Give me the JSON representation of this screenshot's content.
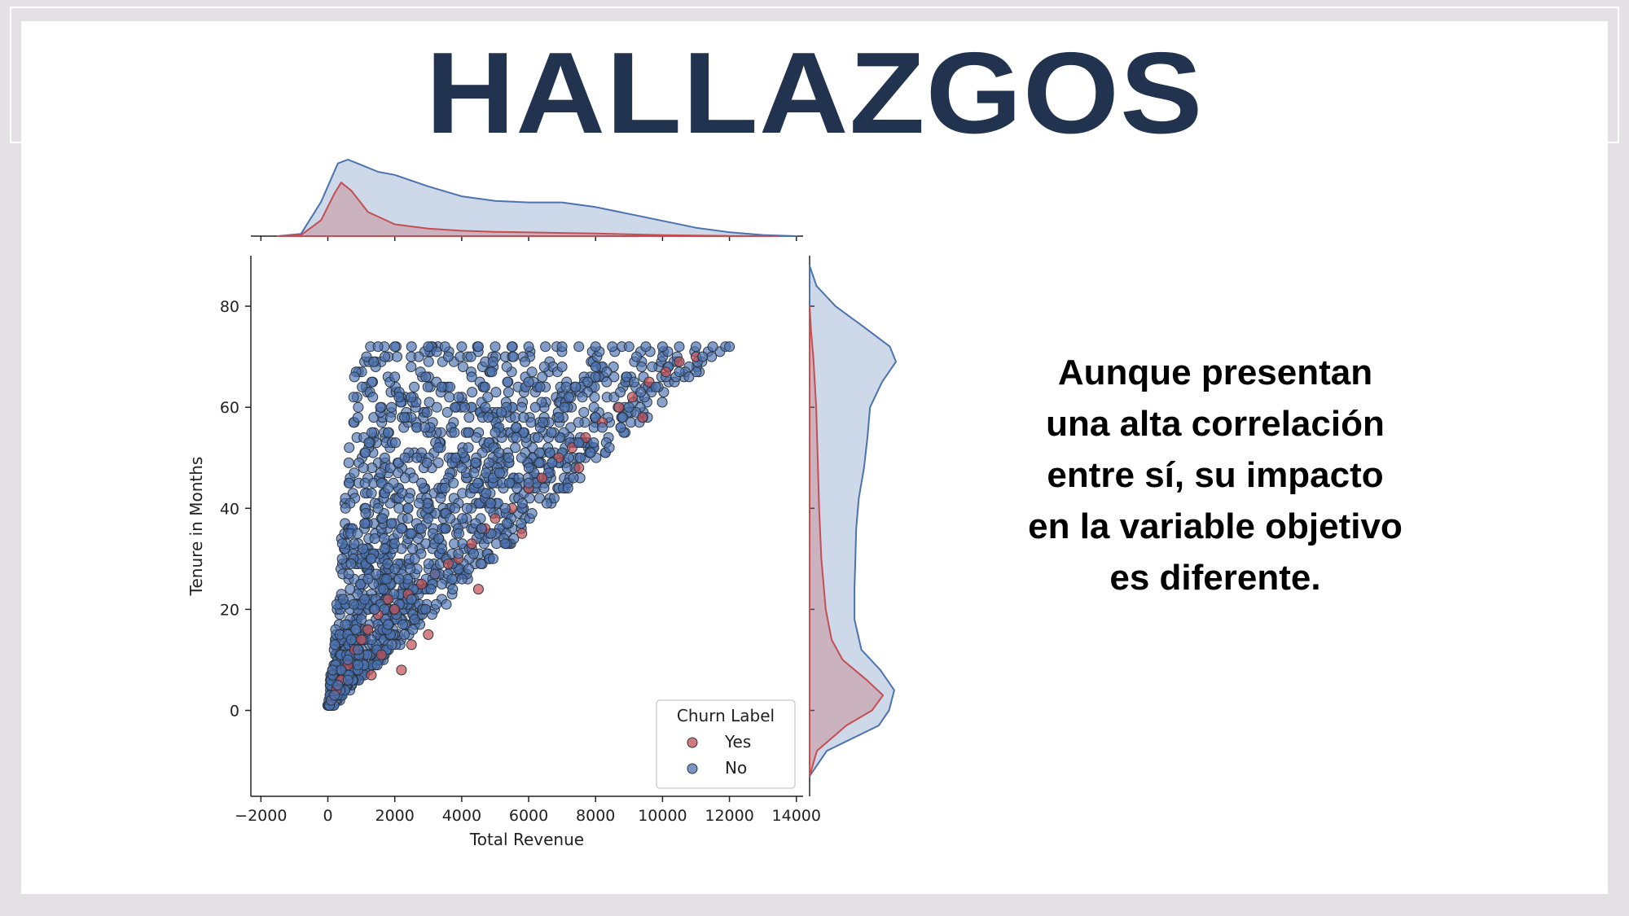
{
  "slide": {
    "title": "HALLAZGOS",
    "finding_lines": [
      "Aunque presentan",
      "una alta correlación",
      "entre sí, su impacto",
      "en la variable objetivo",
      "es diferente."
    ]
  },
  "chart_data": {
    "type": "scatter",
    "subtype": "jointplot with marginal KDE",
    "xlabel": "Total Revenue",
    "ylabel": "Tenure in Months",
    "xlim": [
      -2300,
      14200
    ],
    "ylim": [
      -17,
      90
    ],
    "xticks": [
      -2000,
      0,
      2000,
      4000,
      6000,
      8000,
      10000,
      12000,
      14000
    ],
    "xtick_labels": [
      "−2000",
      "0",
      "2000",
      "4000",
      "6000",
      "8000",
      "10000",
      "12000",
      "14000"
    ],
    "yticks": [
      0,
      20,
      40,
      60,
      80
    ],
    "ytick_labels": [
      "0",
      "20",
      "40",
      "60",
      "80"
    ],
    "legend": {
      "title": "Churn Label",
      "placement": "lower-right",
      "entries": [
        "Yes",
        "No"
      ]
    },
    "colors": {
      "Yes": "#c44e52",
      "No": "#4c72b0",
      "edge": "#2a3440"
    },
    "series": [
      {
        "name": "Yes",
        "points": [
          [
            100,
            2
          ],
          [
            250,
            4
          ],
          [
            400,
            6
          ],
          [
            600,
            9
          ],
          [
            800,
            12
          ],
          [
            1000,
            14
          ],
          [
            1200,
            16
          ],
          [
            1500,
            19
          ],
          [
            1800,
            22
          ],
          [
            2000,
            20
          ],
          [
            2400,
            23
          ],
          [
            2800,
            25
          ],
          [
            3200,
            27
          ],
          [
            3600,
            29
          ],
          [
            3900,
            30
          ],
          [
            4300,
            33
          ],
          [
            4700,
            36
          ],
          [
            5000,
            38
          ],
          [
            5500,
            40
          ],
          [
            6000,
            44
          ],
          [
            6400,
            46
          ],
          [
            6900,
            50
          ],
          [
            7300,
            52
          ],
          [
            7700,
            54
          ],
          [
            8200,
            57
          ],
          [
            8700,
            60
          ],
          [
            9100,
            62
          ],
          [
            9600,
            65
          ],
          [
            10100,
            67
          ],
          [
            10500,
            69
          ],
          [
            11000,
            70
          ],
          [
            3000,
            15
          ],
          [
            2500,
            13
          ],
          [
            1600,
            11
          ],
          [
            4500,
            24
          ],
          [
            5800,
            35
          ],
          [
            7500,
            48
          ],
          [
            9400,
            58
          ],
          [
            2200,
            8
          ],
          [
            1300,
            7
          ]
        ],
        "marginal_x_kde": [
          [
            -1500,
            0
          ],
          [
            -800,
            0.02
          ],
          [
            -200,
            0.3
          ],
          [
            200,
            0.8
          ],
          [
            400,
            1
          ],
          [
            700,
            0.85
          ],
          [
            1200,
            0.45
          ],
          [
            2000,
            0.22
          ],
          [
            3000,
            0.14
          ],
          [
            4000,
            0.1
          ],
          [
            5000,
            0.08
          ],
          [
            6000,
            0.07
          ],
          [
            7000,
            0.06
          ],
          [
            8000,
            0.05
          ],
          [
            9000,
            0.035
          ],
          [
            10000,
            0.02
          ],
          [
            11000,
            0.01
          ],
          [
            12000,
            0.004
          ],
          [
            13500,
            0
          ]
        ],
        "marginal_y_kde": [
          [
            -13,
            0
          ],
          [
            -8,
            0.1
          ],
          [
            -3,
            0.5
          ],
          [
            0,
            0.85
          ],
          [
            3,
            1
          ],
          [
            6,
            0.78
          ],
          [
            10,
            0.45
          ],
          [
            14,
            0.3
          ],
          [
            20,
            0.22
          ],
          [
            30,
            0.16
          ],
          [
            40,
            0.13
          ],
          [
            50,
            0.11
          ],
          [
            60,
            0.09
          ],
          [
            70,
            0.05
          ],
          [
            75,
            0.02
          ],
          [
            80,
            0
          ]
        ]
      },
      {
        "name": "No",
        "points": [
          [
            50,
            1
          ],
          [
            100,
            2
          ],
          [
            200,
            3
          ],
          [
            300,
            5
          ],
          [
            400,
            8
          ],
          [
            600,
            10
          ],
          [
            700,
            14
          ],
          [
            900,
            12
          ],
          [
            1000,
            18
          ],
          [
            1100,
            22
          ],
          [
            1200,
            26
          ],
          [
            1300,
            30
          ],
          [
            1400,
            34
          ],
          [
            1500,
            40
          ],
          [
            1600,
            45
          ],
          [
            1700,
            50
          ],
          [
            1800,
            55
          ],
          [
            1900,
            60
          ],
          [
            2000,
            66
          ],
          [
            1500,
            72
          ],
          [
            2000,
            72
          ],
          [
            2500,
            72
          ],
          [
            3000,
            72
          ],
          [
            3500,
            72
          ],
          [
            4000,
            72
          ],
          [
            4500,
            72
          ],
          [
            5000,
            72
          ],
          [
            5500,
            72
          ],
          [
            6000,
            72
          ],
          [
            6500,
            72
          ],
          [
            7000,
            72
          ],
          [
            7500,
            72
          ],
          [
            8000,
            72
          ],
          [
            8500,
            72
          ],
          [
            9000,
            72
          ],
          [
            9500,
            72
          ],
          [
            10000,
            72
          ],
          [
            10500,
            72
          ],
          [
            11000,
            72
          ],
          [
            11500,
            72
          ],
          [
            12000,
            72
          ],
          [
            11200,
            70
          ],
          [
            10500,
            67
          ],
          [
            9800,
            64
          ],
          [
            9000,
            60
          ],
          [
            8200,
            56
          ],
          [
            7500,
            53
          ],
          [
            6700,
            49
          ],
          [
            6000,
            45
          ],
          [
            5300,
            40
          ],
          [
            4600,
            36
          ],
          [
            3900,
            31
          ],
          [
            3200,
            27
          ],
          [
            2500,
            22
          ],
          [
            1800,
            17
          ],
          [
            2200,
            36
          ],
          [
            2800,
            45
          ],
          [
            3300,
            52
          ],
          [
            3800,
            60
          ],
          [
            4300,
            66
          ],
          [
            4800,
            58
          ],
          [
            5400,
            63
          ],
          [
            6000,
            65
          ],
          [
            7000,
            68
          ],
          [
            8000,
            66
          ],
          [
            3000,
            38
          ],
          [
            4000,
            48
          ],
          [
            5000,
            55
          ],
          [
            6200,
            60
          ],
          [
            7200,
            62
          ],
          [
            2600,
            30
          ],
          [
            3500,
            44
          ],
          [
            4200,
            52
          ],
          [
            2000,
            28
          ],
          [
            2400,
            40
          ],
          [
            2900,
            56
          ],
          [
            3400,
            64
          ],
          [
            1800,
            44
          ],
          [
            2300,
            50
          ],
          [
            3600,
            70
          ],
          [
            1700,
            32
          ],
          [
            1400,
            20
          ],
          [
            900,
            9
          ],
          [
            600,
            6
          ]
        ],
        "marginal_x_kde": [
          [
            -1500,
            0
          ],
          [
            -800,
            0.03
          ],
          [
            -200,
            0.45
          ],
          [
            300,
            0.95
          ],
          [
            600,
            1
          ],
          [
            1000,
            0.93
          ],
          [
            1500,
            0.84
          ],
          [
            2000,
            0.8
          ],
          [
            3000,
            0.65
          ],
          [
            4000,
            0.52
          ],
          [
            5000,
            0.46
          ],
          [
            6000,
            0.44
          ],
          [
            7000,
            0.44
          ],
          [
            8000,
            0.38
          ],
          [
            9000,
            0.29
          ],
          [
            10000,
            0.2
          ],
          [
            11000,
            0.11
          ],
          [
            12000,
            0.05
          ],
          [
            13000,
            0.015
          ],
          [
            14000,
            0
          ]
        ],
        "marginal_y_kde": [
          [
            -13,
            0
          ],
          [
            -8,
            0.2
          ],
          [
            -3,
            0.8
          ],
          [
            0,
            0.92
          ],
          [
            4,
            0.98
          ],
          [
            8,
            0.82
          ],
          [
            12,
            0.6
          ],
          [
            18,
            0.52
          ],
          [
            24,
            0.52
          ],
          [
            30,
            0.53
          ],
          [
            36,
            0.54
          ],
          [
            42,
            0.57
          ],
          [
            48,
            0.63
          ],
          [
            54,
            0.67
          ],
          [
            60,
            0.7
          ],
          [
            65,
            0.84
          ],
          [
            69,
            1
          ],
          [
            72,
            0.93
          ],
          [
            76,
            0.62
          ],
          [
            80,
            0.3
          ],
          [
            84,
            0.08
          ],
          [
            88,
            0
          ]
        ]
      }
    ]
  }
}
